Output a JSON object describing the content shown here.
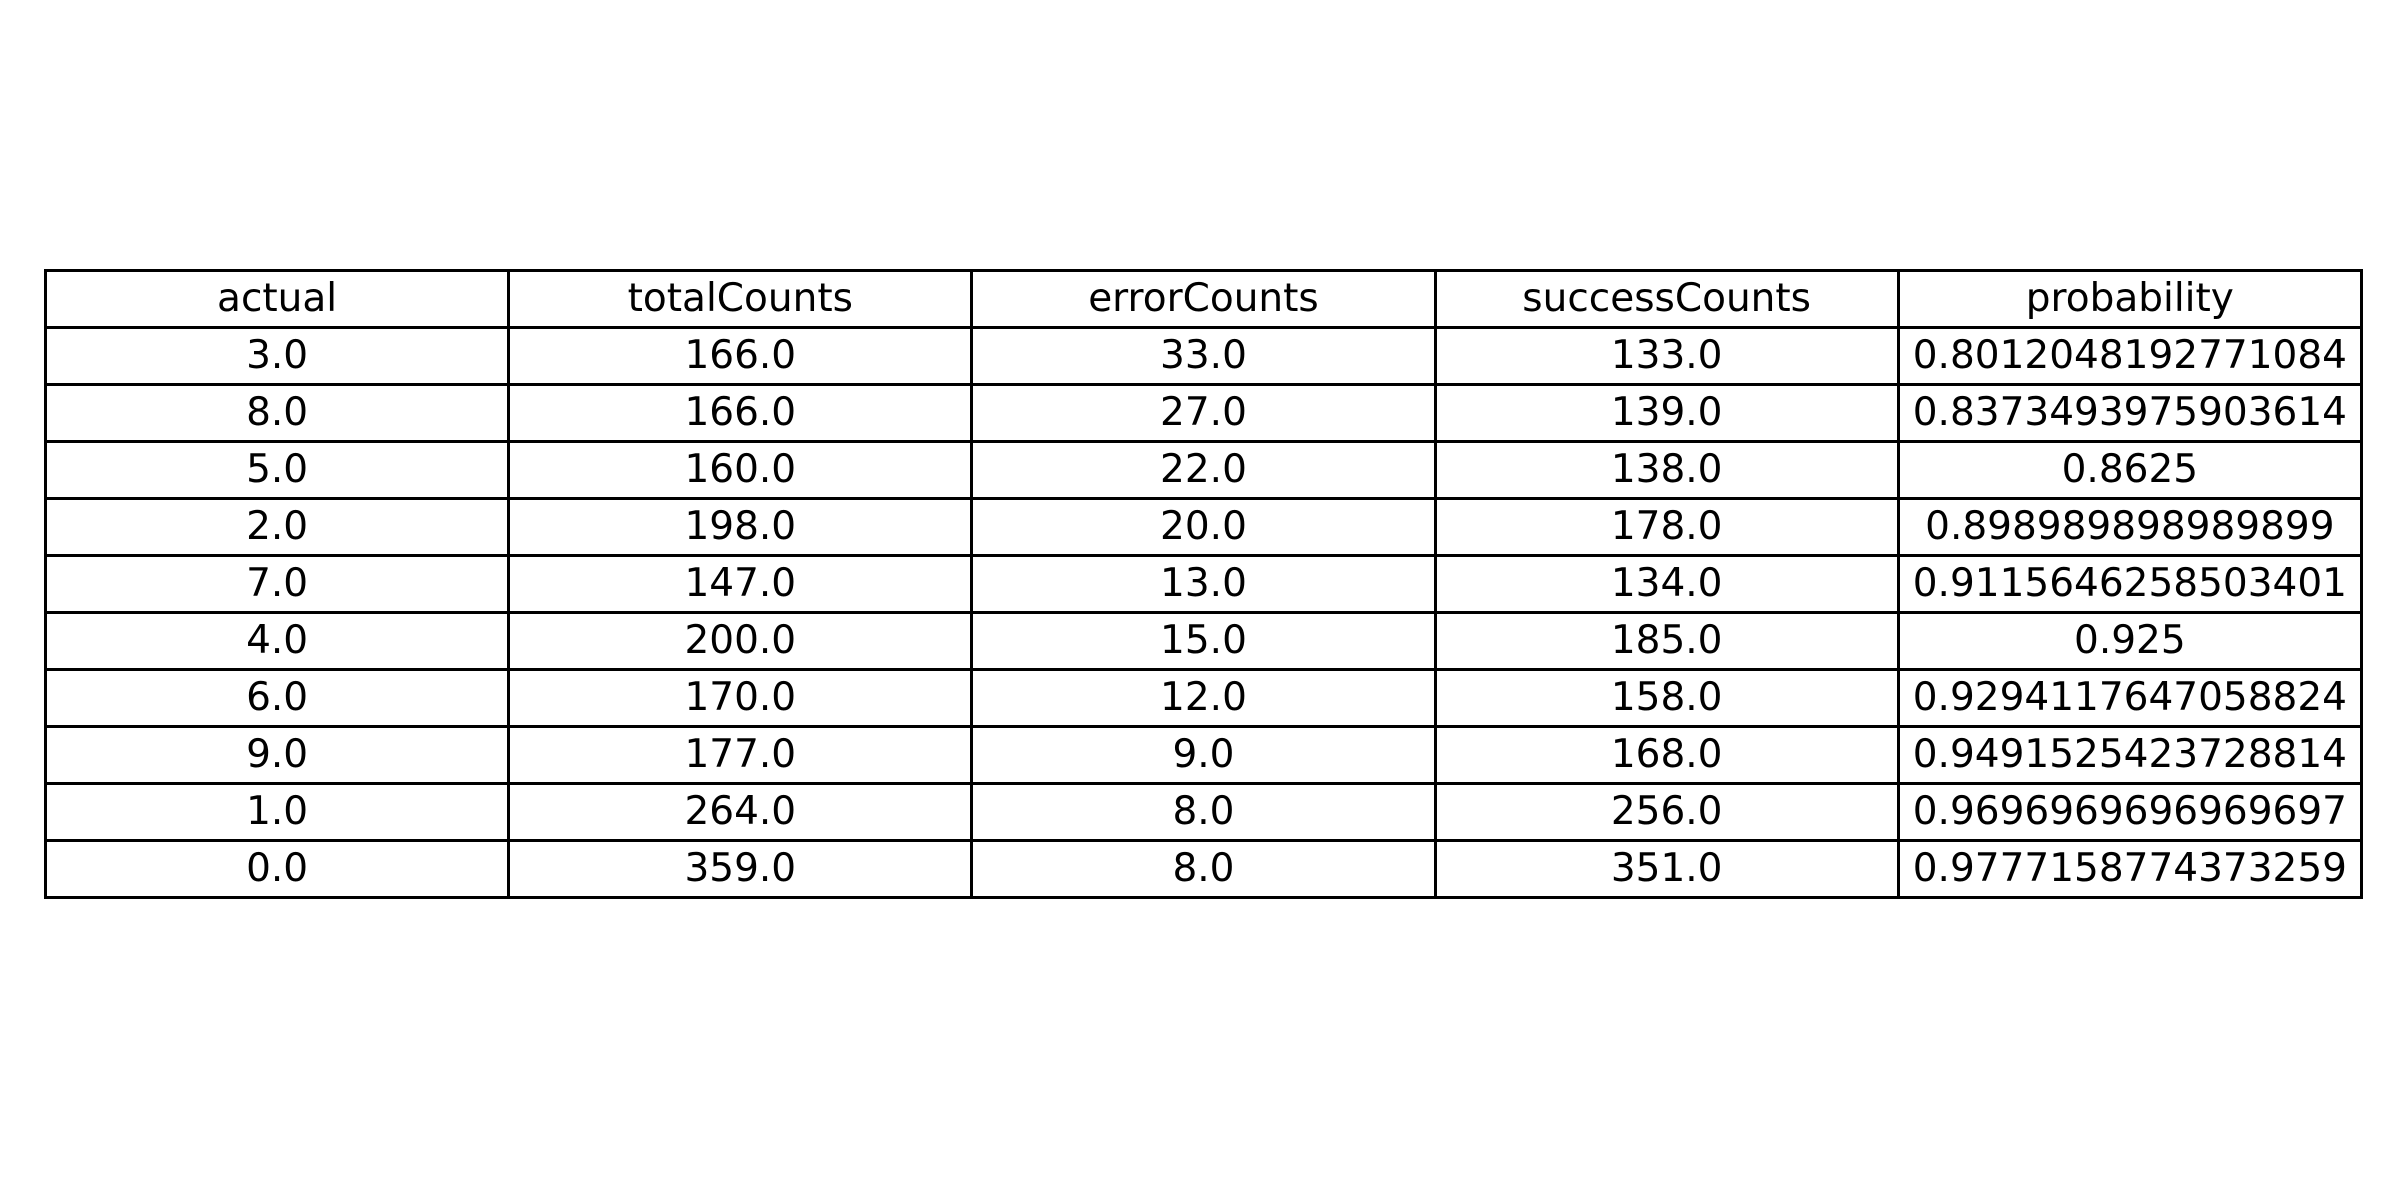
{
  "chart_data": {
    "type": "table",
    "columns": [
      "actual",
      "totalCounts",
      "errorCounts",
      "successCounts",
      "probability"
    ],
    "rows": [
      [
        "3.0",
        "166.0",
        "33.0",
        "133.0",
        "0.8012048192771084"
      ],
      [
        "8.0",
        "166.0",
        "27.0",
        "139.0",
        "0.8373493975903614"
      ],
      [
        "5.0",
        "160.0",
        "22.0",
        "138.0",
        "0.8625"
      ],
      [
        "2.0",
        "198.0",
        "20.0",
        "178.0",
        "0.898989898989899"
      ],
      [
        "7.0",
        "147.0",
        "13.0",
        "134.0",
        "0.9115646258503401"
      ],
      [
        "4.0",
        "200.0",
        "15.0",
        "185.0",
        "0.925"
      ],
      [
        "6.0",
        "170.0",
        "12.0",
        "158.0",
        "0.9294117647058824"
      ],
      [
        "9.0",
        "177.0",
        "9.0",
        "168.0",
        "0.9491525423728814"
      ],
      [
        "1.0",
        "264.0",
        "8.0",
        "256.0",
        "0.9696969696969697"
      ],
      [
        "0.0",
        "359.0",
        "8.0",
        "351.0",
        "0.9777158774373259"
      ]
    ]
  },
  "colors": {
    "border": "#000000",
    "text": "#000000",
    "background": "#ffffff"
  }
}
